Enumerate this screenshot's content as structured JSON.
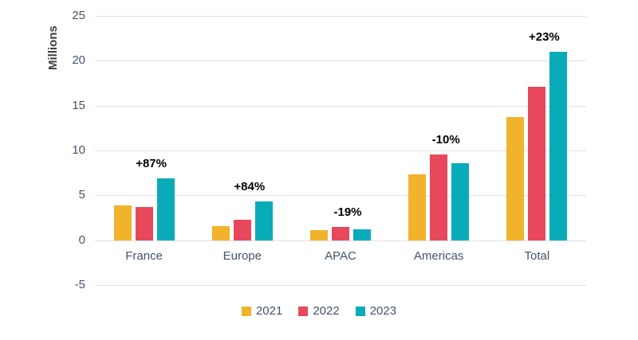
{
  "chart_data": {
    "type": "bar",
    "title": "",
    "xlabel": "",
    "ylabel": "Millions",
    "categories": [
      "France",
      "Europe",
      "APAC",
      "Americas",
      "Total"
    ],
    "series": [
      {
        "name": "2021",
        "color": "#F1B32B",
        "values": [
          3.9,
          1.6,
          1.1,
          7.3,
          13.7
        ]
      },
      {
        "name": "2022",
        "color": "#E8485C",
        "values": [
          3.7,
          2.3,
          1.5,
          9.6,
          17.1
        ]
      },
      {
        "name": "2023",
        "color": "#09ABB8",
        "values": [
          6.9,
          4.3,
          1.2,
          8.6,
          21.0
        ]
      }
    ],
    "annotations": [
      {
        "category": "France",
        "label": "+87%"
      },
      {
        "category": "Europe",
        "label": "+84%"
      },
      {
        "category": "APAC",
        "label": "-19%"
      },
      {
        "category": "Americas",
        "label": "-10%"
      },
      {
        "category": "Total",
        "label": "+23%"
      }
    ],
    "ylim": [
      -5,
      25
    ],
    "yticks": [
      25,
      20,
      15,
      10,
      5,
      0,
      -5
    ],
    "grid": true,
    "legend_position": "bottom",
    "colors": {
      "gridline": "#E2E2E2",
      "axis_text": "#44546A",
      "axis_title_text": "#3F3F3F",
      "annotation_text": "#000000",
      "background": "#FFFFFF"
    }
  }
}
